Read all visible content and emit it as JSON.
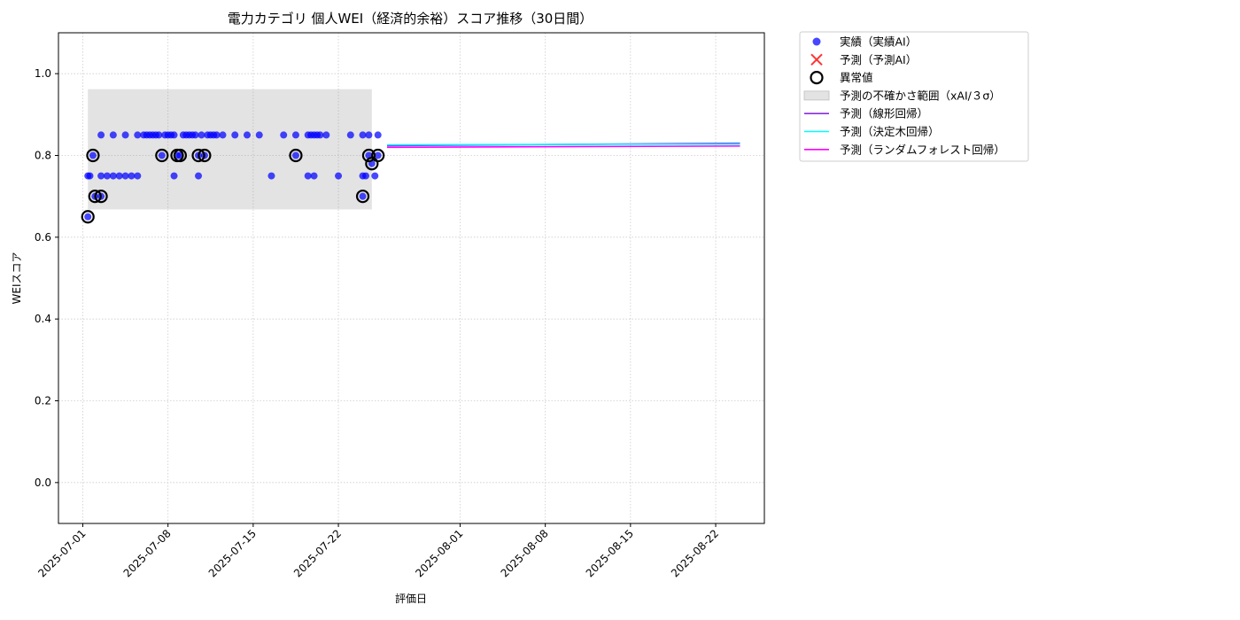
{
  "chart_data": {
    "type": "scatter",
    "title": "電力カテゴリ 個人WEI（経済的余裕）スコア推移（30日間）",
    "xlabel": "評価日",
    "ylabel": "WEIスコア",
    "xlim": [
      "2025-06-29",
      "2025-08-26"
    ],
    "ylim": [
      -0.1,
      1.1
    ],
    "yticks": [
      0.0,
      0.2,
      0.4,
      0.6,
      0.8,
      1.0
    ],
    "ytick_labels": [
      "0.0",
      "0.2",
      "0.4",
      "0.6",
      "0.8",
      "1.0"
    ],
    "xticks": [
      "2025-07-01",
      "2025-07-08",
      "2025-07-15",
      "2025-07-22",
      "2025-08-01",
      "2025-08-08",
      "2025-08-15",
      "2025-08-22"
    ],
    "grid": true,
    "legend_position": "outside-top-right",
    "legend": [
      {
        "label": "実績（実績AI）",
        "kind": "dot",
        "color": "#0000ff"
      },
      {
        "label": "予測（予測AI）",
        "kind": "cross",
        "color": "#ff3333"
      },
      {
        "label": "異常値",
        "kind": "ring",
        "color": "#000000"
      },
      {
        "label": "予測の不確かさ範囲（xAI/３σ）",
        "kind": "band",
        "color": "#cccccc"
      },
      {
        "label": "予測（線形回帰）",
        "kind": "line",
        "color": "#8b2be2"
      },
      {
        "label": "予測（決定木回帰）",
        "kind": "line",
        "color": "#00ffff"
      },
      {
        "label": "予測（ランダムフォレスト回帰）",
        "kind": "line",
        "color": "#ff00ff"
      }
    ],
    "uncertainty_band": {
      "x_start": "2025-07-01 10:00",
      "x_end": "2025-07-24 18:00",
      "y_low": 0.668,
      "y_high": 0.962
    },
    "actual": [
      [
        "2025-07-01 10:00",
        0.65
      ],
      [
        "2025-07-01 10:00",
        0.75
      ],
      [
        "2025-07-01 14:00",
        0.75
      ],
      [
        "2025-07-01 20:00",
        0.8
      ],
      [
        "2025-07-02 00:00",
        0.7
      ],
      [
        "2025-07-02 12:00",
        0.7
      ],
      [
        "2025-07-02 12:00",
        0.75
      ],
      [
        "2025-07-02 12:00",
        0.85
      ],
      [
        "2025-07-03 00:00",
        0.75
      ],
      [
        "2025-07-03 12:00",
        0.85
      ],
      [
        "2025-07-03 12:00",
        0.75
      ],
      [
        "2025-07-04 00:00",
        0.75
      ],
      [
        "2025-07-04 12:00",
        0.85
      ],
      [
        "2025-07-04 12:00",
        0.75
      ],
      [
        "2025-07-05 00:00",
        0.75
      ],
      [
        "2025-07-05 12:00",
        0.85
      ],
      [
        "2025-07-05 12:00",
        0.75
      ],
      [
        "2025-07-06 00:00",
        0.85
      ],
      [
        "2025-07-06 06:00",
        0.85
      ],
      [
        "2025-07-06 12:00",
        0.85
      ],
      [
        "2025-07-06 18:00",
        0.85
      ],
      [
        "2025-07-07 00:00",
        0.85
      ],
      [
        "2025-07-07 06:00",
        0.85
      ],
      [
        "2025-07-07 12:00",
        0.8
      ],
      [
        "2025-07-07 18:00",
        0.85
      ],
      [
        "2025-07-08 00:00",
        0.85
      ],
      [
        "2025-07-08 06:00",
        0.85
      ],
      [
        "2025-07-08 12:00",
        0.75
      ],
      [
        "2025-07-08 12:00",
        0.85
      ],
      [
        "2025-07-08 18:00",
        0.8
      ],
      [
        "2025-07-09 00:00",
        0.8
      ],
      [
        "2025-07-09 06:00",
        0.85
      ],
      [
        "2025-07-09 12:00",
        0.85
      ],
      [
        "2025-07-09 18:00",
        0.85
      ],
      [
        "2025-07-10 00:00",
        0.85
      ],
      [
        "2025-07-10 06:00",
        0.85
      ],
      [
        "2025-07-10 12:00",
        0.8
      ],
      [
        "2025-07-10 12:00",
        0.75
      ],
      [
        "2025-07-10 18:00",
        0.85
      ],
      [
        "2025-07-11 00:00",
        0.8
      ],
      [
        "2025-07-11 06:00",
        0.85
      ],
      [
        "2025-07-11 12:00",
        0.85
      ],
      [
        "2025-07-11 18:00",
        0.85
      ],
      [
        "2025-07-12 00:00",
        0.85
      ],
      [
        "2025-07-12 12:00",
        0.85
      ],
      [
        "2025-07-13 12:00",
        0.85
      ],
      [
        "2025-07-14 12:00",
        0.85
      ],
      [
        "2025-07-15 12:00",
        0.85
      ],
      [
        "2025-07-16 12:00",
        0.75
      ],
      [
        "2025-07-17 12:00",
        0.85
      ],
      [
        "2025-07-18 12:00",
        0.85
      ],
      [
        "2025-07-18 12:00",
        0.8
      ],
      [
        "2025-07-19 12:00",
        0.85
      ],
      [
        "2025-07-19 12:00",
        0.75
      ],
      [
        "2025-07-19 18:00",
        0.85
      ],
      [
        "2025-07-20 00:00",
        0.85
      ],
      [
        "2025-07-20 00:00",
        0.75
      ],
      [
        "2025-07-20 06:00",
        0.85
      ],
      [
        "2025-07-20 12:00",
        0.85
      ],
      [
        "2025-07-21 00:00",
        0.85
      ],
      [
        "2025-07-22 00:00",
        0.75
      ],
      [
        "2025-07-23 00:00",
        0.85
      ],
      [
        "2025-07-24 00:00",
        0.7
      ],
      [
        "2025-07-24 00:00",
        0.75
      ],
      [
        "2025-07-24 00:00",
        0.85
      ],
      [
        "2025-07-24 06:00",
        0.75
      ],
      [
        "2025-07-24 12:00",
        0.8
      ],
      [
        "2025-07-24 12:00",
        0.85
      ],
      [
        "2025-07-24 18:00",
        0.78
      ],
      [
        "2025-07-25 00:00",
        0.75
      ],
      [
        "2025-07-25 06:00",
        0.8
      ],
      [
        "2025-07-25 06:00",
        0.85
      ]
    ],
    "anomalies": [
      [
        "2025-07-01 10:00",
        0.65
      ],
      [
        "2025-07-01 20:00",
        0.8
      ],
      [
        "2025-07-02 00:00",
        0.7
      ],
      [
        "2025-07-02 12:00",
        0.7
      ],
      [
        "2025-07-07 12:00",
        0.8
      ],
      [
        "2025-07-08 18:00",
        0.8
      ],
      [
        "2025-07-09 00:00",
        0.8
      ],
      [
        "2025-07-10 12:00",
        0.8
      ],
      [
        "2025-07-11 00:00",
        0.8
      ],
      [
        "2025-07-18 12:00",
        0.8
      ],
      [
        "2025-07-24 00:00",
        0.7
      ],
      [
        "2025-07-24 12:00",
        0.8
      ],
      [
        "2025-07-24 18:00",
        0.78
      ],
      [
        "2025-07-25 06:00",
        0.8
      ]
    ],
    "series": [
      {
        "name": "予測（線形回帰）",
        "color": "#8b2be2",
        "x": [
          "2025-07-26",
          "2025-08-24"
        ],
        "y": [
          0.824,
          0.83
        ]
      },
      {
        "name": "予測（決定木回帰）",
        "color": "#00ffff",
        "x": [
          "2025-07-26",
          "2025-08-24"
        ],
        "y": [
          0.826,
          0.828
        ]
      },
      {
        "name": "予測（ランダムフォレスト回帰）",
        "color": "#ff00ff",
        "x": [
          "2025-07-26",
          "2025-08-24"
        ],
        "y": [
          0.82,
          0.823
        ]
      }
    ]
  }
}
